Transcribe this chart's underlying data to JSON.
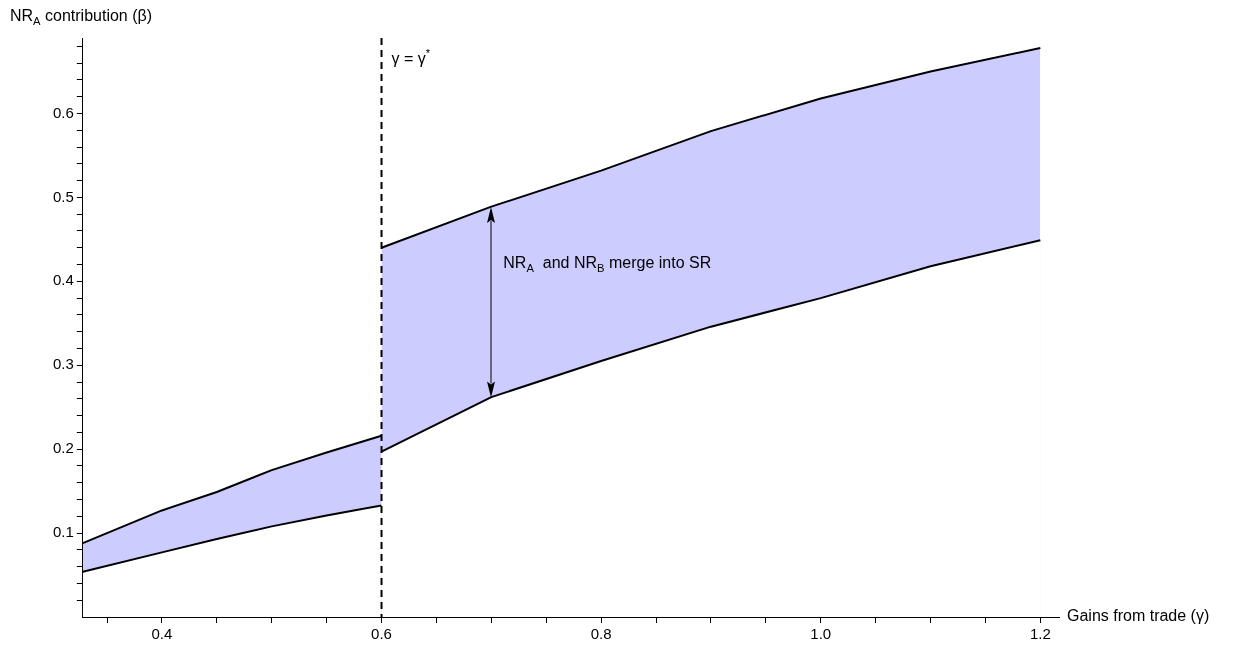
{
  "chart_data": {
    "type": "area",
    "xlabel": "Gains from trade (γ)",
    "ylabel": "NR$_{A}$ contribution (β)",
    "xlim": [
      0.328,
      1.217
    ],
    "ylim": [
      0,
      0.69
    ],
    "xticks": [
      {
        "value": 0.35,
        "label": null
      },
      0.4,
      {
        "value": 0.45,
        "label": null
      },
      {
        "value": 0.5,
        "label": null
      },
      {
        "value": 0.55,
        "label": null
      },
      0.6,
      {
        "value": 0.65,
        "label": null
      },
      {
        "value": 0.7,
        "label": null
      },
      {
        "value": 0.75,
        "label": null
      },
      0.8,
      {
        "value": 0.85,
        "label": null
      },
      {
        "value": 0.9,
        "label": null
      },
      {
        "value": 0.95,
        "label": null
      },
      {
        "value": 1,
        "label": "1.0"
      },
      {
        "value": 1.05,
        "label": null
      },
      {
        "value": 1.1,
        "label": null
      },
      {
        "value": 1.15,
        "label": null
      },
      1.2
    ],
    "yticks": [
      {
        "value": 0.02,
        "label": null
      },
      {
        "value": 0.04,
        "label": null
      },
      {
        "value": 0.06,
        "label": null
      },
      {
        "value": 0.08,
        "label": null
      },
      0.1,
      {
        "value": 0.12,
        "label": null
      },
      {
        "value": 0.14,
        "label": null
      },
      {
        "value": 0.16,
        "label": null
      },
      {
        "value": 0.18,
        "label": null
      },
      0.2,
      {
        "value": 0.22,
        "label": null
      },
      {
        "value": 0.24,
        "label": null
      },
      {
        "value": 0.26,
        "label": null
      },
      {
        "value": 0.28,
        "label": null
      },
      0.3,
      {
        "value": 0.32,
        "label": null
      },
      {
        "value": 0.34,
        "label": null
      },
      {
        "value": 0.36,
        "label": null
      },
      {
        "value": 0.38,
        "label": null
      },
      0.4,
      {
        "value": 0.42,
        "label": null
      },
      {
        "value": 0.44,
        "label": null
      },
      {
        "value": 0.46,
        "label": null
      },
      {
        "value": 0.48,
        "label": null
      },
      0.5,
      {
        "value": 0.52,
        "label": null
      },
      {
        "value": 0.54,
        "label": null
      },
      {
        "value": 0.56,
        "label": null
      },
      {
        "value": 0.58,
        "label": null
      },
      0.6,
      {
        "value": 0.62,
        "label": null
      },
      {
        "value": 0.64,
        "label": null
      },
      {
        "value": 0.66,
        "label": null
      },
      {
        "value": 0.68,
        "label": null
      }
    ],
    "grid": false,
    "legend": false,
    "series": [
      {
        "color": "#ccccff",
        "x": [
          0.328,
          0.4,
          0.45,
          0.5,
          0.55,
          0.6
        ],
        "values": [
          0.088,
          0.127,
          0.149,
          0.175,
          0.196,
          0.216
        ]
      },
      {
        "color": "#ccccff",
        "x": [
          0.6,
          0.7,
          0.8,
          0.9,
          1.0,
          1.1,
          1.2
        ],
        "values": [
          0.44,
          0.489,
          0.532,
          0.579,
          0.618,
          0.65,
          0.678
        ]
      },
      {
        "color": "#ffffff",
        "x": [
          0.328,
          0.4,
          0.45,
          0.5,
          0.55,
          0.6
        ],
        "values": [
          0.054,
          0.077,
          0.093,
          0.108,
          0.121,
          0.133
        ]
      },
      {
        "color": "#ffffff",
        "x": [
          0.6,
          0.7,
          0.8,
          0.9,
          1.0,
          1.1,
          1.2
        ],
        "values": [
          0.197,
          0.262,
          0.305,
          0.346,
          0.38,
          0.418,
          0.449
        ]
      }
    ],
    "ref_lines": [
      {
        "axis": "x",
        "value": 0.6,
        "label": "γ = γ$^{*}$",
        "line_style": "dashed",
        "color": "#000000"
      }
    ],
    "annotations": [
      "NR$_{A}$  and NR$_{B}$ merge into SR"
    ]
  }
}
